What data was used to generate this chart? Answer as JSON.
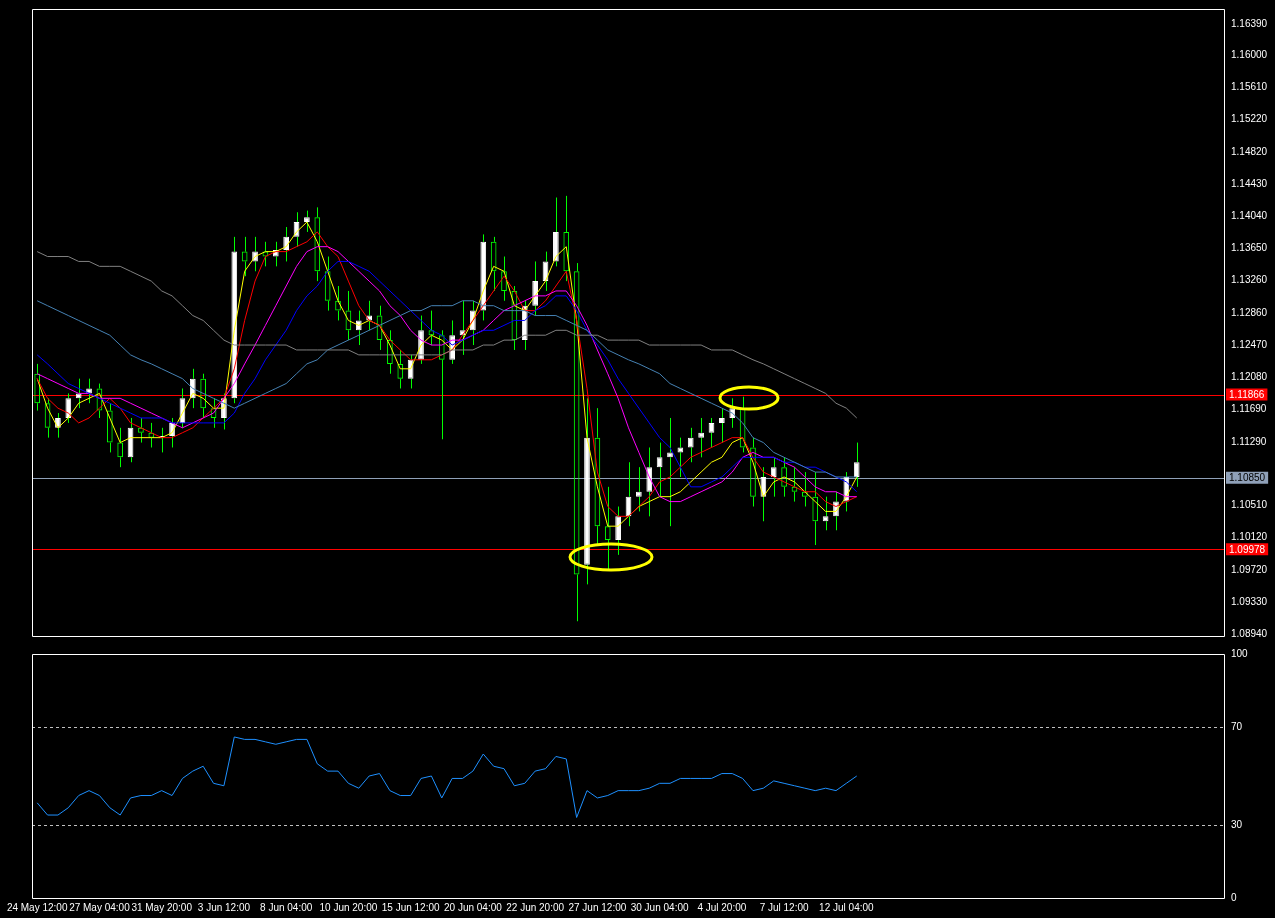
{
  "chart_data": [
    {
      "type": "candlestick",
      "color": "#00ff00",
      "tick_labels": "y",
      "categories": [
        null,
        null,
        null,
        null,
        null,
        null,
        null,
        null,
        null,
        null,
        null,
        null,
        null,
        null,
        null,
        null,
        null,
        null,
        null,
        null,
        null,
        null,
        null,
        null,
        null,
        null,
        null,
        null,
        null,
        null,
        null,
        null,
        null,
        null,
        null,
        null,
        null,
        null,
        null,
        null,
        null,
        null,
        null,
        null,
        null,
        null,
        null,
        null,
        null,
        null,
        null,
        null,
        null,
        null,
        null,
        null,
        null,
        null,
        null,
        null,
        null,
        null,
        null,
        null,
        null,
        null,
        null,
        null,
        null,
        null,
        null,
        null,
        null,
        null,
        null,
        null,
        null,
        null,
        null,
        null,
        null,
        null,
        null,
        null,
        null,
        null,
        null,
        null,
        null,
        null,
        null,
        null,
        null,
        null,
        null,
        null,
        null,
        null,
        null,
        null,
        null,
        null,
        null,
        null,
        null,
        null,
        null,
        null,
        null,
        null,
        null,
        null,
        null,
        null,
        null
      ],
      "ohlc": [
        [
          1.1212,
          1.1224,
          1.1167,
          1.1176
        ],
        [
          1.1176,
          1.1182,
          1.1134,
          1.1146
        ],
        [
          1.1146,
          1.1164,
          1.1134,
          1.1158
        ],
        [
          1.1158,
          1.1188,
          1.1152,
          1.1182
        ],
        [
          1.1182,
          1.1206,
          1.117,
          1.1188
        ],
        [
          1.1188,
          1.1206,
          1.1176,
          1.1194
        ],
        [
          1.1194,
          1.12,
          1.1158,
          1.1167
        ],
        [
          1.1167,
          1.1176,
          1.1116,
          1.1128
        ],
        [
          1.1128,
          1.1146,
          1.1098,
          1.111
        ],
        [
          1.111,
          1.1158,
          1.1104,
          1.1146
        ],
        [
          1.1146,
          1.1158,
          1.1128,
          1.114
        ],
        [
          1.114,
          1.1152,
          1.1122,
          1.1134
        ],
        [
          1.1134,
          1.1146,
          1.1116,
          1.1136
        ],
        [
          1.1136,
          1.1158,
          1.1122,
          1.1152
        ],
        [
          1.1152,
          1.1194,
          1.1146,
          1.1182
        ],
        [
          1.1182,
          1.1218,
          1.117,
          1.1206
        ],
        [
          1.1206,
          1.1212,
          1.1158,
          1.117
        ],
        [
          1.117,
          1.1182,
          1.1146,
          1.1158
        ],
        [
          1.1158,
          1.1188,
          1.1144,
          1.1182
        ],
        [
          1.1182,
          1.1379,
          1.1176,
          1.1361
        ],
        [
          1.1361,
          1.1379,
          1.1331,
          1.1349
        ],
        [
          1.1349,
          1.1379,
          1.1337,
          1.1361
        ],
        [
          1.1361,
          1.1373,
          1.1343,
          1.1355
        ],
        [
          1.1355,
          1.1373,
          1.1343,
          1.1363
        ],
        [
          1.1363,
          1.1391,
          1.1349,
          1.1379
        ],
        [
          1.1379,
          1.1409,
          1.1367,
          1.1397
        ],
        [
          1.1397,
          1.1411,
          1.1385,
          1.1403
        ],
        [
          1.1403,
          1.1415,
          1.1325,
          1.1337
        ],
        [
          1.1337,
          1.1355,
          1.1289,
          1.1301
        ],
        [
          1.1301,
          1.1319,
          1.1277,
          1.1289
        ],
        [
          1.1289,
          1.1313,
          1.1253,
          1.1265
        ],
        [
          1.1265,
          1.1289,
          1.1247,
          1.1277
        ],
        [
          1.1277,
          1.1301,
          1.1265,
          1.1283
        ],
        [
          1.1283,
          1.1295,
          1.1241,
          1.1253
        ],
        [
          1.1253,
          1.1265,
          1.1212,
          1.1224
        ],
        [
          1.1224,
          1.1241,
          1.1194,
          1.1206
        ],
        [
          1.1206,
          1.1235,
          1.1194,
          1.1229
        ],
        [
          1.1229,
          1.1283,
          1.1224,
          1.1265
        ],
        [
          1.1265,
          1.1289,
          1.1247,
          1.1259
        ],
        [
          1.1259,
          1.1265,
          1.1132,
          1.1229
        ],
        [
          1.1229,
          1.1277,
          1.1224,
          1.1259
        ],
        [
          1.1259,
          1.1301,
          1.1235,
          1.1265
        ],
        [
          1.1265,
          1.1301,
          1.1247,
          1.1289
        ],
        [
          1.1289,
          1.1382,
          1.1277,
          1.1373
        ],
        [
          1.1373,
          1.1379,
          1.1313,
          1.1337
        ],
        [
          1.1337,
          1.1355,
          1.1301,
          1.1313
        ],
        [
          1.1313,
          1.1319,
          1.1241,
          1.1253
        ],
        [
          1.1253,
          1.1301,
          1.1241,
          1.1295
        ],
        [
          1.1295,
          1.1349,
          1.1283,
          1.1325
        ],
        [
          1.1325,
          1.1361,
          1.1313,
          1.1349
        ],
        [
          1.1349,
          1.1427,
          1.1343,
          1.1385
        ],
        [
          1.1385,
          1.1429,
          1.1325,
          1.1337
        ],
        [
          1.1337,
          1.1347,
          1.091,
          1.0967
        ],
        [
          1.0979,
          1.1182,
          1.0955,
          1.1134
        ],
        [
          1.1134,
          1.117,
          1.1003,
          1.1026
        ],
        [
          1.1026,
          1.1074,
          1.0973,
          1.1009
        ],
        [
          1.1009,
          1.105,
          1.0991,
          1.1038
        ],
        [
          1.1038,
          1.1104,
          1.1026,
          1.1062
        ],
        [
          1.1062,
          1.1098,
          1.1044,
          1.1068
        ],
        [
          1.1068,
          1.1122,
          1.1038,
          1.1098
        ],
        [
          1.1098,
          1.1128,
          1.1062,
          1.111
        ],
        [
          1.111,
          1.1158,
          1.1026,
          1.1116
        ],
        [
          1.1116,
          1.1134,
          1.1086,
          1.1122
        ],
        [
          1.1122,
          1.1146,
          1.1104,
          1.1134
        ],
        [
          1.1134,
          1.1158,
          1.111,
          1.114
        ],
        [
          1.114,
          1.1158,
          1.1122,
          1.1152
        ],
        [
          1.1152,
          1.117,
          1.1128,
          1.1158
        ],
        [
          1.1158,
          1.1182,
          1.1146,
          1.117
        ],
        [
          1.117,
          1.1184,
          1.1116,
          1.1122
        ],
        [
          1.1122,
          1.1134,
          1.105,
          1.1062
        ],
        [
          1.1062,
          1.1098,
          1.1032,
          1.1086
        ],
        [
          1.1086,
          1.111,
          1.1062,
          1.1098
        ],
        [
          1.1098,
          1.111,
          1.1062,
          1.1074
        ],
        [
          1.1074,
          1.1098,
          1.1056,
          1.1068
        ],
        [
          1.1068,
          1.1092,
          1.105,
          1.1062
        ],
        [
          1.1062,
          1.1092,
          1.1003,
          1.1032
        ],
        [
          1.1032,
          1.1062,
          1.1021,
          1.1038
        ],
        [
          1.1038,
          1.1068,
          1.1021,
          1.1056
        ],
        [
          1.1056,
          1.1092,
          1.1044,
          1.1086
        ],
        [
          1.1086,
          1.1128,
          1.1074,
          1.1104
        ],
        null,
        null,
        null,
        null,
        null,
        null,
        null,
        null,
        null,
        null,
        null,
        null,
        null,
        null,
        null,
        null,
        null,
        null,
        null,
        null,
        null,
        null,
        null,
        null,
        null,
        null,
        null,
        null,
        null,
        null,
        null,
        null,
        null,
        null,
        null
      ],
      "colors": [
        "#00ff00",
        "#00ff00",
        "#ffffff",
        "#ffffff",
        "#ffffff",
        "#ffffff",
        "#00ff00",
        "#00ff00",
        "#00ff00",
        "#ffffff",
        "#00ff00",
        "#00ff00",
        "#ffffff",
        "#ffffff",
        "#ffffff",
        "#ffffff",
        "#00ff00",
        "#00ff00",
        "#ffffff",
        "#ffffff",
        "#00ff00",
        "#ffffff",
        "#00ff00",
        "#ffffff",
        "#ffffff",
        "#ffffff",
        "#ffffff",
        "#00ff00",
        "#00ff00",
        "#00ff00",
        "#00ff00",
        "#ffffff",
        "#ffffff",
        "#00ff00",
        "#00ff00",
        "#00ff00",
        "#ffffff",
        "#ffffff",
        "#00ff00",
        "#00ff00",
        "#ffffff",
        "#ffffff",
        "#ffffff",
        "#ffffff",
        "#00ff00",
        "#00ff00",
        "#00ff00",
        "#ffffff",
        "#ffffff",
        "#ffffff",
        "#ffffff",
        "#00ff00",
        "#00ff00",
        "#ffffff",
        "#00ff00",
        "#00ff00",
        "#ffffff",
        "#ffffff",
        "#ffffff",
        "#ffffff",
        "#ffffff",
        "#ffffff",
        "#ffffff",
        "#ffffff",
        "#ffffff",
        "#ffffff",
        "#ffffff",
        "#ffffff",
        "#00ff00",
        "#00ff00",
        "#ffffff",
        "#ffffff",
        "#00ff00",
        "#00ff00",
        "#00ff00",
        "#00ff00",
        "#ffffff",
        "#ffffff",
        "#ffffff",
        "#ffffff",
        null,
        null,
        null,
        null,
        null,
        null,
        null,
        null,
        null,
        null,
        null,
        null,
        null,
        null,
        null,
        null,
        null,
        null,
        null,
        null,
        null,
        null,
        null,
        null,
        null,
        null,
        null,
        null,
        null,
        null,
        null,
        null,
        null,
        null,
        null
      ],
      "series": [
        {
          "type": "line",
          "color": "#808080",
          "values": [
            1.1361,
            1.1355,
            1.1355,
            1.1355,
            1.1349,
            1.1349,
            1.1343,
            1.1343,
            1.1343,
            1.1337,
            1.1331,
            1.1325,
            1.1313,
            1.1307,
            1.1295,
            1.1283,
            1.1277,
            1.1265,
            1.1253,
            1.1247,
            1.1247,
            1.1247,
            1.1247,
            1.1247,
            1.1247,
            1.1241,
            1.1241,
            1.1241,
            1.1241,
            1.1241,
            1.1241,
            1.1235,
            1.1235,
            1.1235,
            1.1235,
            1.1235,
            1.1235,
            1.1235,
            1.1235,
            1.1235,
            1.1241,
            1.1241,
            1.1241,
            1.1247,
            1.1247,
            1.1253,
            1.1253,
            1.1259,
            1.1259,
            1.1259,
            1.1265,
            1.1265,
            1.1259,
            1.1259,
            1.1259,
            1.1253,
            1.1253,
            1.1253,
            1.1253,
            1.1247,
            1.1247,
            1.1247,
            1.1247,
            1.1247,
            1.1247,
            1.1241,
            1.1241,
            1.1241,
            1.1235,
            1.1229,
            1.1224,
            1.1218,
            1.1212,
            1.1206,
            1.12,
            1.1194,
            1.1188,
            1.1176,
            1.117,
            1.1158,
            null,
            null,
            null,
            null,
            null,
            null,
            null,
            null,
            null,
            null,
            null,
            null,
            null,
            null,
            null,
            null,
            null,
            null,
            null,
            null,
            null,
            null,
            null,
            null,
            null,
            null,
            null,
            null,
            null,
            null,
            null,
            null,
            null,
            null,
            null
          ]
        },
        {
          "type": "line",
          "color": "#4682b4",
          "values": [
            1.1301,
            1.1295,
            1.1289,
            1.1283,
            1.1277,
            1.1271,
            1.1265,
            1.1259,
            1.1247,
            1.1235,
            1.1229,
            1.1224,
            1.1218,
            1.1212,
            1.1206,
            1.1194,
            1.1188,
            1.1182,
            1.1176,
            1.117,
            1.1176,
            1.1182,
            1.1188,
            1.1194,
            1.12,
            1.1212,
            1.1224,
            1.1229,
            1.1241,
            1.1247,
            1.1253,
            1.1259,
            1.1265,
            1.1271,
            1.1277,
            1.1283,
            1.1289,
            1.1289,
            1.1295,
            1.1295,
            1.1295,
            1.1301,
            1.1301,
            1.1295,
            1.1295,
            1.1289,
            1.1289,
            1.1289,
            1.1283,
            1.1283,
            1.1283,
            1.1277,
            1.1271,
            1.1265,
            1.1253,
            1.1241,
            1.1235,
            1.1229,
            1.1224,
            1.1218,
            1.1212,
            1.12,
            1.1194,
            1.1188,
            1.1182,
            1.1176,
            1.117,
            1.1164,
            1.1152,
            1.1134,
            1.1128,
            1.1116,
            1.111,
            1.1104,
            1.1098,
            1.1092,
            1.1092,
            1.1086,
            1.1086,
            1.1086,
            null,
            null,
            null,
            null,
            null,
            null,
            null,
            null,
            null,
            null,
            null,
            null,
            null,
            null,
            null,
            null,
            null,
            null,
            null,
            null,
            null,
            null,
            null,
            null,
            null,
            null,
            null,
            null,
            null,
            null,
            null,
            null,
            null,
            null,
            null
          ]
        },
        {
          "type": "line",
          "color": "#0000ff",
          "values": [
            1.1235,
            1.1224,
            1.1212,
            1.12,
            1.1194,
            1.1188,
            1.1182,
            1.1176,
            1.117,
            1.1164,
            1.1158,
            1.1158,
            1.1158,
            1.1152,
            1.1152,
            1.1152,
            1.1152,
            1.1152,
            1.1152,
            1.1164,
            1.1188,
            1.1206,
            1.1229,
            1.1247,
            1.1265,
            1.1289,
            1.1307,
            1.1319,
            1.1337,
            1.1349,
            1.1349,
            1.1343,
            1.1337,
            1.1325,
            1.1313,
            1.1301,
            1.1289,
            1.1277,
            1.1265,
            1.1259,
            1.1247,
            1.1253,
            1.1259,
            1.1265,
            1.1265,
            1.1271,
            1.1277,
            1.1277,
            1.1289,
            1.1295,
            1.1307,
            1.1307,
            1.1289,
            1.1265,
            1.1247,
            1.1229,
            1.1206,
            1.1188,
            1.117,
            1.1152,
            1.1134,
            1.1122,
            1.1098,
            1.1074,
            1.1074,
            1.108,
            1.1086,
            1.1098,
            1.111,
            1.111,
            1.111,
            1.111,
            1.1104,
            1.1104,
            1.1098,
            1.1098,
            1.1092,
            1.1086,
            1.108,
            1.1068,
            null,
            null,
            null,
            null,
            null,
            null,
            null,
            null,
            null,
            null,
            null,
            null,
            null,
            null,
            null,
            null,
            null,
            null,
            null,
            null,
            null,
            null,
            null,
            null,
            null,
            null,
            null,
            null,
            null,
            null,
            null,
            null,
            null,
            null,
            null
          ]
        },
        {
          "type": "line",
          "color": "#ff00ff",
          "values": [
            1.1212,
            1.1206,
            1.12,
            1.1194,
            1.1188,
            1.1188,
            1.1182,
            1.1182,
            1.1182,
            1.1176,
            1.117,
            1.1164,
            1.1158,
            1.1152,
            1.1146,
            1.1152,
            1.1158,
            1.1164,
            1.1182,
            1.12,
            1.1224,
            1.1247,
            1.1271,
            1.1295,
            1.1319,
            1.1343,
            1.1361,
            1.1367,
            1.1367,
            1.1361,
            1.1349,
            1.1337,
            1.1325,
            1.1313,
            1.1295,
            1.1283,
            1.1265,
            1.1253,
            1.1247,
            1.1247,
            1.1253,
            1.1253,
            1.1259,
            1.1265,
            1.1277,
            1.1289,
            1.1295,
            1.1301,
            1.1307,
            1.1307,
            1.1313,
            1.1313,
            1.1295,
            1.1271,
            1.1241,
            1.1212,
            1.1182,
            1.1146,
            1.1116,
            1.1086,
            1.1062,
            1.1056,
            1.1056,
            1.1062,
            1.1068,
            1.1074,
            1.108,
            1.1092,
            1.111,
            1.1116,
            1.111,
            1.111,
            1.1104,
            1.1098,
            1.1086,
            1.1074,
            1.1068,
            1.1068,
            1.1062,
            1.1062,
            null,
            null,
            null,
            null,
            null,
            null,
            null,
            null,
            null,
            null,
            null,
            null,
            null,
            null,
            null,
            null,
            null,
            null,
            null,
            null,
            null,
            null,
            null,
            null,
            null,
            null,
            null,
            null,
            null,
            null,
            null,
            null,
            null,
            null,
            null
          ]
        },
        {
          "type": "line",
          "color": "#ff0000",
          "values": [
            1.1206,
            1.1182,
            1.117,
            1.1164,
            1.1152,
            1.1158,
            1.117,
            1.1182,
            1.117,
            1.1152,
            1.1146,
            1.114,
            1.1134,
            1.1134,
            1.114,
            1.1146,
            1.1158,
            1.117,
            1.1182,
            1.1218,
            1.1277,
            1.1325,
            1.1355,
            1.1361,
            1.1361,
            1.1367,
            1.1373,
            1.1385,
            1.1367,
            1.1355,
            1.1325,
            1.1295,
            1.1277,
            1.1271,
            1.1253,
            1.1241,
            1.1229,
            1.1229,
            1.1229,
            1.1235,
            1.1241,
            1.1259,
            1.1277,
            1.1295,
            1.1313,
            1.1331,
            1.1313,
            1.1289,
            1.1289,
            1.1301,
            1.1319,
            1.1337,
            1.1277,
            1.1194,
            1.1092,
            1.105,
            1.1038,
            1.1038,
            1.105,
            1.1062,
            1.108,
            1.1086,
            1.1098,
            1.111,
            1.1116,
            1.1122,
            1.1128,
            1.1134,
            1.1134,
            1.111,
            1.1092,
            1.1086,
            1.108,
            1.1074,
            1.1068,
            1.1068,
            1.1056,
            1.105,
            1.1056,
            1.1062,
            null,
            null,
            null,
            null,
            null,
            null,
            null,
            null,
            null,
            null,
            null,
            null,
            null,
            null,
            null,
            null,
            null,
            null,
            null,
            null,
            null,
            null,
            null,
            null,
            null,
            null,
            null,
            null,
            null,
            null,
            null,
            null,
            null,
            null,
            null
          ]
        },
        {
          "type": "line",
          "color": "#ffff00",
          "values": [
            1.1206,
            1.117,
            1.1146,
            1.1158,
            1.1176,
            1.1182,
            1.1188,
            1.1158,
            1.1128,
            1.1134,
            1.1134,
            1.1134,
            1.1134,
            1.114,
            1.1164,
            1.1188,
            1.1182,
            1.117,
            1.117,
            1.1265,
            1.1337,
            1.1355,
            1.1361,
            1.1361,
            1.1367,
            1.1385,
            1.1397,
            1.1373,
            1.1337,
            1.1301,
            1.1277,
            1.1271,
            1.1277,
            1.1271,
            1.1247,
            1.1218,
            1.1218,
            1.1247,
            1.1259,
            1.1253,
            1.1241,
            1.1253,
            1.1277,
            1.1313,
            1.1343,
            1.1337,
            1.1295,
            1.1289,
            1.1307,
            1.1325,
            1.1355,
            1.1367,
            1.1277,
            1.1134,
            1.1074,
            1.1026,
            1.1026,
            1.1038,
            1.105,
            1.1056,
            1.1062,
            1.1062,
            1.1068,
            1.108,
            1.1092,
            1.1104,
            1.111,
            1.1128,
            1.1134,
            1.1104,
            1.1062,
            1.108,
            1.1086,
            1.108,
            1.1068,
            1.1056,
            1.1044,
            1.1044,
            1.1062,
            1.1086,
            null,
            null,
            null,
            null,
            null,
            null,
            null,
            null,
            null,
            null,
            null,
            null,
            null,
            null,
            null,
            null,
            null,
            null,
            null,
            null,
            null,
            null,
            null,
            null,
            null,
            null,
            null,
            null,
            null,
            null,
            null,
            null,
            null,
            null,
            null
          ]
        }
      ],
      "ylim": [
        1.0892,
        1.1657
      ],
      "yticks": [
        {
          "value": 1.1639,
          "label": "1.16390"
        },
        {
          "value": 1.16,
          "label": "1.16000"
        },
        {
          "value": 1.1561,
          "label": "1.15610"
        },
        {
          "value": 1.1522,
          "label": "1.15220"
        },
        {
          "value": 1.1482,
          "label": "1.14820"
        },
        {
          "value": 1.1443,
          "label": "1.14430"
        },
        {
          "value": 1.1404,
          "label": "1.14040"
        },
        {
          "value": 1.1365,
          "label": "1.13650"
        },
        {
          "value": 1.1326,
          "label": "1.13260"
        },
        {
          "value": 1.1286,
          "label": "1.12860"
        },
        {
          "value": 1.1247,
          "label": "1.12470"
        },
        {
          "value": 1.1208,
          "label": "1.12080"
        },
        {
          "value": 1.1169,
          "label": "1.11690"
        },
        {
          "value": 1.1129,
          "label": "1.11290"
        },
        {
          "value": 1.1051,
          "label": "1.10510"
        },
        {
          "value": 1.1012,
          "label": "1.10120"
        },
        {
          "value": 1.0972,
          "label": "1.09720"
        },
        {
          "value": 1.0933,
          "label": "1.09330"
        },
        {
          "value": 1.0894,
          "label": "1.08940"
        }
      ],
      "ref_lines": [
        {
          "axis": "y",
          "value": 1.11866,
          "label": "1.11866",
          "color": "#ff0000"
        },
        {
          "axis": "y",
          "value": 1.1085,
          "label": "1.10850",
          "color": "#8fa0b8"
        },
        {
          "axis": "y",
          "value": 1.09978,
          "label": "1.09978",
          "color": "#ff0000"
        }
      ]
    },
    {
      "type": "line",
      "categories": [
        "24 May 12:00",
        null,
        null,
        null,
        null,
        null,
        "27 May 04:00",
        null,
        null,
        null,
        null,
        null,
        "31 May 20:00",
        null,
        null,
        null,
        null,
        null,
        "3 Jun 12:00",
        null,
        null,
        null,
        null,
        null,
        "8 Jun 04:00",
        null,
        null,
        null,
        null,
        null,
        "10 Jun 20:00",
        null,
        null,
        null,
        null,
        null,
        "15 Jun 12:00",
        null,
        null,
        null,
        null,
        null,
        "20 Jun 04:00",
        null,
        null,
        null,
        null,
        null,
        "22 Jun 20:00",
        null,
        null,
        null,
        null,
        null,
        "27 Jun 12:00",
        null,
        null,
        null,
        null,
        null,
        "30 Jun 04:00",
        null,
        null,
        null,
        null,
        null,
        "4 Jul 20:00",
        null,
        null,
        null,
        null,
        null,
        "7 Jul 12:00",
        null,
        null,
        null,
        null,
        null,
        "12 Jul 04:00",
        null,
        null,
        null,
        null,
        null,
        null,
        null,
        null,
        null,
        null,
        null,
        null,
        null,
        null,
        null,
        null,
        null,
        null,
        null,
        null,
        null,
        null,
        null,
        null,
        null,
        null,
        null,
        null,
        null,
        null,
        null,
        null,
        null,
        null,
        null,
        null
      ],
      "series": [
        {
          "color": "#1e90ff",
          "values": [
            39,
            34,
            34,
            37,
            42,
            44,
            42,
            37,
            34,
            41,
            42,
            42,
            44,
            42,
            49,
            52,
            54,
            47,
            46,
            66,
            65,
            65,
            64,
            63,
            64,
            65,
            65,
            55,
            52,
            52,
            47,
            45,
            50,
            51,
            44,
            42,
            42,
            49,
            50,
            41,
            49,
            49,
            52,
            59,
            54,
            53,
            46,
            47,
            52,
            53,
            58,
            57,
            33,
            44,
            41,
            42,
            44,
            44,
            44,
            45,
            47,
            47,
            49,
            49,
            49,
            49,
            51,
            51,
            49,
            44,
            45,
            48,
            47,
            46,
            45,
            44,
            45,
            44,
            47,
            50,
            null,
            null,
            null,
            null,
            null,
            null,
            null,
            null,
            null,
            null,
            null,
            null,
            null,
            null,
            null,
            null,
            null,
            null,
            null,
            null,
            null,
            null,
            null,
            null,
            null,
            null,
            null,
            null,
            null,
            null,
            null,
            null,
            null,
            null,
            null
          ]
        }
      ],
      "ylim": [
        0,
        100
      ],
      "yticks": [
        0,
        30,
        70,
        100
      ],
      "ref_lines": [
        {
          "axis": "y",
          "value": 30,
          "color": "#c0c0c0",
          "line_style": "dashed"
        },
        {
          "axis": "y",
          "value": 70,
          "color": "#c0c0c0",
          "line_style": "dashed"
        }
      ]
    }
  ]
}
